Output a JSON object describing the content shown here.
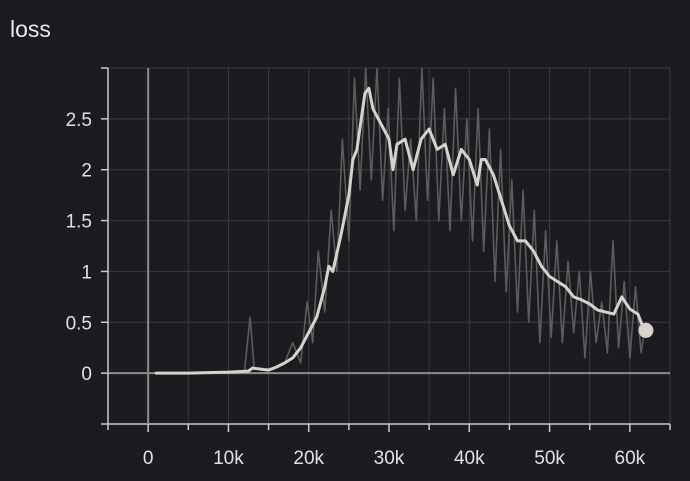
{
  "chart_data": {
    "type": "line",
    "title": "loss",
    "xlabel": "",
    "ylabel": "",
    "xlim": [
      -5000,
      65000
    ],
    "ylim": [
      -0.5,
      3.0
    ],
    "x_ticks": [
      0,
      10000,
      20000,
      30000,
      40000,
      50000,
      60000
    ],
    "x_tick_labels": [
      "0",
      "10k",
      "20k",
      "30k",
      "40k",
      "50k",
      "60k"
    ],
    "y_ticks": [
      0,
      0.5,
      1,
      1.5,
      2,
      2.5
    ],
    "y_tick_labels": [
      "0",
      "0.5",
      "1",
      "1.5",
      "2",
      "2.5"
    ],
    "grid": true,
    "colors": {
      "smoothed": "#d7d3ca",
      "raw": "#5c5c5e",
      "zero_line": "#8c8c8c",
      "grid": "#3b3c40"
    },
    "series": [
      {
        "role": "smoothed",
        "x": [
          1000,
          5000,
          10000,
          12500,
          13000,
          14000,
          15000,
          16000,
          17000,
          18000,
          19000,
          20000,
          21000,
          22000,
          22500,
          23000,
          24000,
          25000,
          25500,
          26000,
          27000,
          27500,
          28000,
          29000,
          30000,
          30500,
          31000,
          32000,
          33000,
          34000,
          35000,
          36000,
          37000,
          38000,
          39000,
          40000,
          41000,
          41500,
          42000,
          43000,
          44000,
          45000,
          46000,
          47000,
          48000,
          49000,
          50000,
          51000,
          52000,
          53000,
          54000,
          55000,
          56000,
          57000,
          58000,
          59000,
          60000,
          61000,
          61500,
          62000
        ],
        "y": [
          0,
          0,
          0.01,
          0.02,
          0.05,
          0.04,
          0.03,
          0.06,
          0.1,
          0.15,
          0.25,
          0.4,
          0.55,
          0.85,
          1.05,
          1.0,
          1.35,
          1.75,
          2.1,
          2.2,
          2.75,
          2.8,
          2.6,
          2.45,
          2.3,
          2.0,
          2.25,
          2.3,
          2.0,
          2.3,
          2.4,
          2.2,
          2.25,
          1.95,
          2.2,
          2.1,
          1.85,
          2.1,
          2.1,
          1.95,
          1.7,
          1.45,
          1.3,
          1.3,
          1.2,
          1.05,
          0.95,
          0.9,
          0.85,
          0.75,
          0.72,
          0.68,
          0.62,
          0.6,
          0.58,
          0.75,
          0.63,
          0.58,
          0.48,
          0.42
        ]
      },
      {
        "role": "raw",
        "x": [
          1000,
          5000,
          10000,
          12000,
          12700,
          13200,
          14000,
          15500,
          17000,
          18000,
          19000,
          19800,
          20500,
          21200,
          22000,
          22800,
          23500,
          24200,
          25000,
          25700,
          26400,
          27100,
          27800,
          28500,
          29200,
          29900,
          30600,
          31300,
          32000,
          32700,
          33400,
          34100,
          34800,
          35500,
          36200,
          36900,
          37600,
          38300,
          39000,
          39700,
          40400,
          41100,
          41800,
          42500,
          43200,
          43900,
          44600,
          45300,
          46000,
          46700,
          47400,
          48100,
          48800,
          49500,
          50200,
          50900,
          51600,
          52300,
          53000,
          53700,
          54400,
          55100,
          55800,
          56500,
          57200,
          57900,
          58600,
          59300,
          60000,
          60700,
          61400,
          62000
        ],
        "y": [
          0,
          0,
          0.01,
          0.02,
          0.55,
          0.05,
          0.03,
          0.05,
          0.1,
          0.3,
          0.1,
          0.7,
          0.3,
          1.2,
          0.6,
          1.6,
          1.0,
          2.3,
          1.3,
          2.9,
          1.8,
          3.0,
          1.9,
          3.0,
          1.7,
          2.6,
          1.4,
          2.9,
          1.6,
          2.3,
          1.5,
          3.0,
          1.7,
          2.9,
          1.5,
          2.6,
          1.4,
          2.8,
          1.5,
          2.5,
          1.3,
          2.6,
          1.2,
          2.4,
          0.9,
          2.2,
          0.8,
          1.9,
          0.6,
          1.8,
          0.5,
          1.6,
          0.3,
          1.4,
          0.35,
          1.3,
          0.3,
          1.1,
          0.4,
          1.0,
          0.15,
          1.0,
          0.3,
          0.7,
          0.2,
          1.3,
          0.25,
          0.9,
          0.15,
          0.85,
          0.2,
          0.5
        ]
      }
    ],
    "last_point": {
      "x": 62000,
      "y": 0.42
    }
  }
}
